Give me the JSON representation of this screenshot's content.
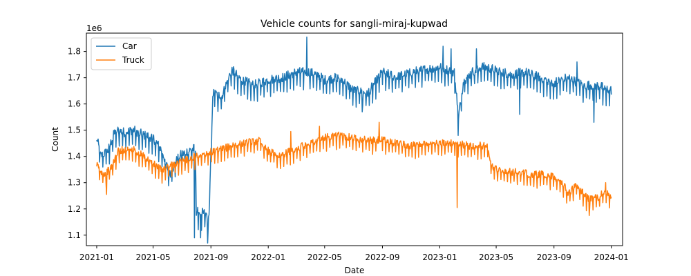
{
  "chart_data": {
    "type": "line",
    "title": "Vehicle counts for sangli-miraj-kupwad",
    "xlabel": "Date",
    "ylabel": "Count",
    "y_offset_label": "1e6",
    "xlim": [
      "2020-12-10",
      "2024-01-25"
    ],
    "ylim": [
      1.06,
      1.87
    ],
    "x_ticks": [
      "2021-01",
      "2021-05",
      "2021-09",
      "2022-01",
      "2022-05",
      "2022-09",
      "2023-01",
      "2023-05",
      "2023-09",
      "2024-01"
    ],
    "y_ticks": [
      1.1,
      1.2,
      1.3,
      1.4,
      1.5,
      1.6,
      1.7,
      1.8
    ],
    "legend_position": "upper-left",
    "grid": false,
    "series": [
      {
        "name": "Car",
        "color": "#1f77b4",
        "keypoints": [
          [
            "2021-01-01",
            1.47
          ],
          [
            "2021-01-10",
            1.4
          ],
          [
            "2021-01-25",
            1.42
          ],
          [
            "2021-02-10",
            1.5
          ],
          [
            "2021-03-01",
            1.49
          ],
          [
            "2021-03-20",
            1.5
          ],
          [
            "2021-04-10",
            1.48
          ],
          [
            "2021-05-01",
            1.47
          ],
          [
            "2021-05-20",
            1.42
          ],
          [
            "2021-06-05",
            1.33
          ],
          [
            "2021-06-25",
            1.4
          ],
          [
            "2021-07-15",
            1.42
          ],
          [
            "2021-07-30",
            1.43
          ],
          [
            "2021-08-01",
            1.19
          ],
          [
            "2021-08-20",
            1.18
          ],
          [
            "2021-08-28",
            1.17
          ],
          [
            "2021-09-01",
            1.4
          ],
          [
            "2021-09-05",
            1.64
          ],
          [
            "2021-09-25",
            1.63
          ],
          [
            "2021-10-15",
            1.73
          ],
          [
            "2021-11-05",
            1.69
          ],
          [
            "2021-12-01",
            1.67
          ],
          [
            "2022-01-01",
            1.69
          ],
          [
            "2022-02-01",
            1.7
          ],
          [
            "2022-03-01",
            1.72
          ],
          [
            "2022-03-28",
            1.72
          ],
          [
            "2022-04-15",
            1.71
          ],
          [
            "2022-05-01",
            1.69
          ],
          [
            "2022-06-01",
            1.7
          ],
          [
            "2022-07-01",
            1.65
          ],
          [
            "2022-08-01",
            1.64
          ],
          [
            "2022-09-01",
            1.72
          ],
          [
            "2022-10-01",
            1.7
          ],
          [
            "2022-11-01",
            1.72
          ],
          [
            "2022-12-01",
            1.73
          ],
          [
            "2023-01-01",
            1.74
          ],
          [
            "2023-02-01",
            1.72
          ],
          [
            "2023-02-10",
            1.55
          ],
          [
            "2023-02-20",
            1.68
          ],
          [
            "2023-03-10",
            1.72
          ],
          [
            "2023-04-01",
            1.74
          ],
          [
            "2023-05-01",
            1.73
          ],
          [
            "2023-06-01",
            1.71
          ],
          [
            "2023-07-01",
            1.72
          ],
          [
            "2023-08-01",
            1.7
          ],
          [
            "2023-09-01",
            1.68
          ],
          [
            "2023-10-01",
            1.7
          ],
          [
            "2023-11-01",
            1.67
          ],
          [
            "2023-12-01",
            1.67
          ],
          [
            "2024-01-01",
            1.65
          ]
        ],
        "spikes": [
          [
            "2021-07-28",
            1.09
          ],
          [
            "2021-08-10",
            1.09
          ],
          [
            "2021-08-25",
            1.07
          ],
          [
            "2022-03-24",
            1.855
          ],
          [
            "2022-07-20",
            1.57
          ],
          [
            "2023-01-08",
            1.82
          ],
          [
            "2023-01-25",
            1.81
          ],
          [
            "2023-02-09",
            1.48
          ],
          [
            "2023-03-20",
            1.81
          ],
          [
            "2023-06-20",
            1.56
          ],
          [
            "2023-10-20",
            1.76
          ],
          [
            "2023-11-25",
            1.53
          ]
        ],
        "noise": 0.045
      },
      {
        "name": "Truck",
        "color": "#ff7f0e",
        "keypoints": [
          [
            "2021-01-01",
            1.37
          ],
          [
            "2021-01-15",
            1.33
          ],
          [
            "2021-01-30",
            1.35
          ],
          [
            "2021-02-15",
            1.42
          ],
          [
            "2021-03-15",
            1.43
          ],
          [
            "2021-04-10",
            1.4
          ],
          [
            "2021-05-01",
            1.37
          ],
          [
            "2021-05-20",
            1.35
          ],
          [
            "2021-06-15",
            1.37
          ],
          [
            "2021-07-15",
            1.39
          ],
          [
            "2021-08-15",
            1.41
          ],
          [
            "2021-09-15",
            1.42
          ],
          [
            "2021-10-15",
            1.44
          ],
          [
            "2021-11-15",
            1.45
          ],
          [
            "2021-12-15",
            1.46
          ],
          [
            "2022-01-01",
            1.42
          ],
          [
            "2022-01-25",
            1.4
          ],
          [
            "2022-03-01",
            1.43
          ],
          [
            "2022-04-01",
            1.45
          ],
          [
            "2022-05-01",
            1.47
          ],
          [
            "2022-06-01",
            1.48
          ],
          [
            "2022-07-01",
            1.47
          ],
          [
            "2022-08-01",
            1.46
          ],
          [
            "2022-09-01",
            1.46
          ],
          [
            "2022-10-01",
            1.45
          ],
          [
            "2022-11-01",
            1.44
          ],
          [
            "2022-12-01",
            1.45
          ],
          [
            "2023-01-01",
            1.45
          ],
          [
            "2023-02-01",
            1.45
          ],
          [
            "2023-03-01",
            1.44
          ],
          [
            "2023-04-01",
            1.44
          ],
          [
            "2023-04-12",
            1.44
          ],
          [
            "2023-04-22",
            1.36
          ],
          [
            "2023-05-15",
            1.34
          ],
          [
            "2023-06-15",
            1.34
          ],
          [
            "2023-07-15",
            1.33
          ],
          [
            "2023-08-15",
            1.33
          ],
          [
            "2023-09-15",
            1.31
          ],
          [
            "2023-10-01",
            1.26
          ],
          [
            "2023-10-20",
            1.29
          ],
          [
            "2023-11-10",
            1.24
          ],
          [
            "2023-12-01",
            1.24
          ],
          [
            "2023-12-15",
            1.26
          ],
          [
            "2024-01-01",
            1.25
          ]
        ],
        "spikes": [
          [
            "2021-01-22",
            1.255
          ],
          [
            "2022-02-18",
            1.495
          ],
          [
            "2022-04-20",
            1.515
          ],
          [
            "2022-08-25",
            1.53
          ],
          [
            "2023-02-07",
            1.205
          ],
          [
            "2023-11-15",
            1.175
          ],
          [
            "2023-12-20",
            1.3
          ]
        ],
        "noise": 0.035
      }
    ]
  }
}
